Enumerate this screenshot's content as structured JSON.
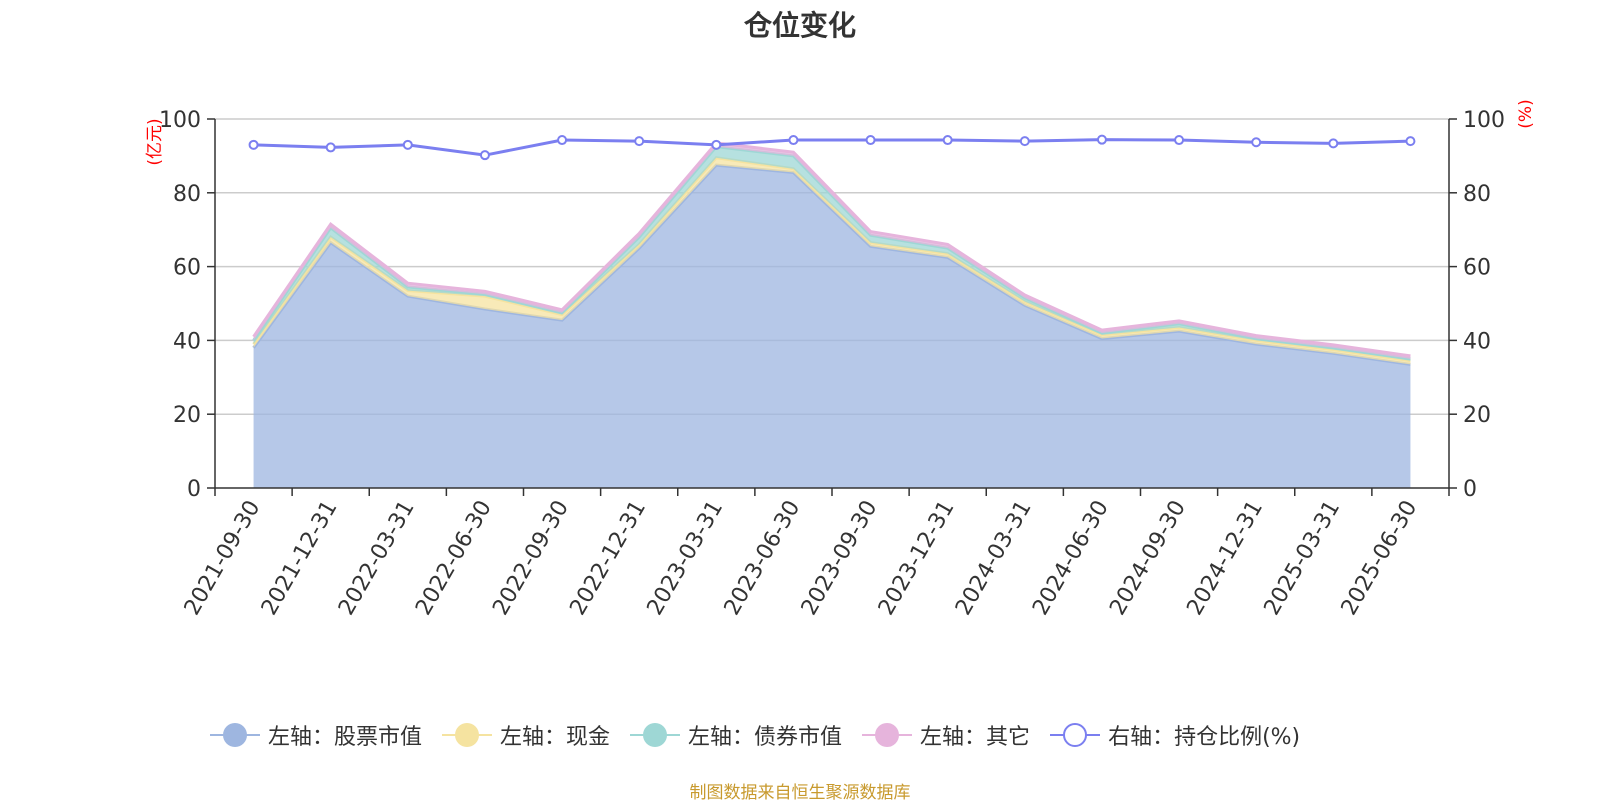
{
  "chart_data": {
    "type": "area",
    "title": "仓位变化",
    "categories": [
      "2021-09-30",
      "2021-12-31",
      "2022-03-31",
      "2022-06-30",
      "2022-09-30",
      "2022-12-31",
      "2023-03-31",
      "2023-06-30",
      "2023-09-30",
      "2023-12-31",
      "2024-03-31",
      "2024-06-30",
      "2024-09-30",
      "2024-12-31",
      "2025-03-31",
      "2025-06-30"
    ],
    "left_axis": {
      "unit": "(亿元)",
      "ylim": [
        0,
        100
      ],
      "ticks": [
        0,
        20,
        40,
        60,
        80,
        100
      ]
    },
    "right_axis": {
      "unit": "(%)",
      "ylim": [
        0,
        100
      ],
      "ticks": [
        0,
        20,
        40,
        60,
        80,
        100
      ]
    },
    "stacked_series": [
      {
        "name": "左轴：股票市值",
        "color": "#9eb6e0",
        "values": [
          38.0,
          66.5,
          52.0,
          48.5,
          45.5,
          65.0,
          87.5,
          85.5,
          65.5,
          62.5,
          49.5,
          40.5,
          42.5,
          39.0,
          36.5,
          33.5
        ]
      },
      {
        "name": "左轴：现金",
        "color": "#f5e3a0",
        "values": [
          1.0,
          1.5,
          1.5,
          3.5,
          1.5,
          1.0,
          2.0,
          1.0,
          1.0,
          1.0,
          1.0,
          1.0,
          1.0,
          1.0,
          1.0,
          1.0
        ]
      },
      {
        "name": "左轴：债券市值",
        "color": "#9ed7d5",
        "values": [
          1.0,
          2.5,
          1.0,
          0.5,
          0.5,
          2.0,
          3.0,
          3.5,
          2.0,
          1.5,
          1.0,
          0.5,
          1.0,
          0.5,
          0.5,
          0.5
        ]
      },
      {
        "name": "左轴：其它",
        "color": "#e6b4dc",
        "values": [
          1.0,
          1.0,
          1.0,
          0.8,
          0.8,
          1.0,
          1.0,
          1.0,
          1.0,
          1.0,
          0.8,
          0.8,
          0.8,
          0.8,
          0.8,
          0.8
        ]
      }
    ],
    "line_series": {
      "name": "右轴：持仓比例(%)",
      "color": "#7b7ff0",
      "axis": "right",
      "values": [
        93.0,
        92.3,
        93.0,
        90.2,
        94.3,
        94.0,
        93.0,
        94.3,
        94.3,
        94.3,
        94.0,
        94.4,
        94.3,
        93.7,
        93.4,
        94.0
      ]
    },
    "grid": true,
    "legend_position": "bottom"
  },
  "footer": {
    "source": "制图数据来自恒生聚源数据库"
  }
}
